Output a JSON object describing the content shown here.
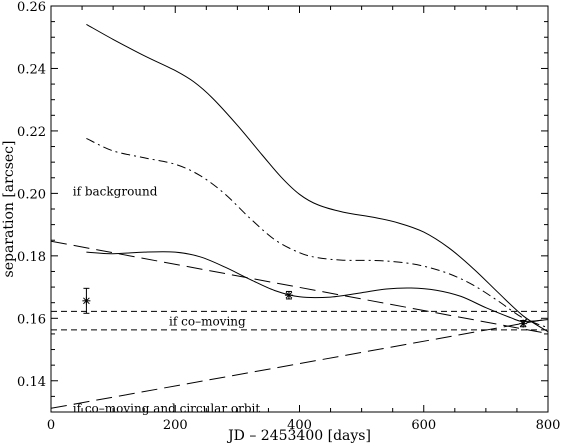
{
  "chart_data": {
    "type": "line",
    "xlabel": "JD – 2453400 [days]",
    "ylabel": "separation [arcsec]",
    "xlim": [
      0,
      800
    ],
    "ylim": [
      0.13,
      0.26
    ],
    "xticks": [
      0,
      200,
      400,
      600,
      800
    ],
    "yticks": [
      0.14,
      0.16,
      0.18,
      0.2,
      0.22,
      0.24,
      0.26
    ],
    "ytick_labels": [
      "0.14",
      "0.16",
      "0.18",
      "0.20",
      "0.22",
      "0.24",
      "0.26"
    ],
    "grid": false,
    "series": [
      {
        "style": "solid",
        "points": [
          [
            57,
            0.2541
          ],
          [
            100,
            0.2493
          ],
          [
            150,
            0.2441
          ],
          [
            200,
            0.2393
          ],
          [
            230,
            0.2357
          ],
          [
            260,
            0.2305
          ],
          [
            300,
            0.2218
          ],
          [
            340,
            0.2123
          ],
          [
            370,
            0.2053
          ],
          [
            400,
            0.1997
          ],
          [
            430,
            0.1963
          ],
          [
            470,
            0.194
          ],
          [
            520,
            0.1923
          ],
          [
            560,
            0.1905
          ],
          [
            600,
            0.1876
          ],
          [
            640,
            0.1826
          ],
          [
            680,
            0.1759
          ],
          [
            720,
            0.1682
          ],
          [
            760,
            0.1608
          ],
          [
            800,
            0.1557
          ]
        ]
      },
      {
        "style": "dash-dot",
        "points": [
          [
            57,
            0.2176
          ],
          [
            100,
            0.2136
          ],
          [
            150,
            0.2114
          ],
          [
            200,
            0.2093
          ],
          [
            240,
            0.2057
          ],
          [
            280,
            0.1998
          ],
          [
            320,
            0.1921
          ],
          [
            360,
            0.1852
          ],
          [
            400,
            0.181
          ],
          [
            430,
            0.1794
          ],
          [
            470,
            0.1786
          ],
          [
            520,
            0.1785
          ],
          [
            560,
            0.178
          ],
          [
            600,
            0.1767
          ],
          [
            640,
            0.1743
          ],
          [
            680,
            0.1706
          ],
          [
            720,
            0.1655
          ],
          [
            760,
            0.1601
          ],
          [
            800,
            0.157
          ]
        ]
      },
      {
        "style": "solid",
        "points": [
          [
            57,
            0.1812
          ],
          [
            100,
            0.1807
          ],
          [
            150,
            0.1812
          ],
          [
            200,
            0.1812
          ],
          [
            240,
            0.1797
          ],
          [
            280,
            0.1764
          ],
          [
            320,
            0.1725
          ],
          [
            360,
            0.1689
          ],
          [
            400,
            0.1669
          ],
          [
            450,
            0.1668
          ],
          [
            500,
            0.1682
          ],
          [
            540,
            0.1694
          ],
          [
            580,
            0.1697
          ],
          [
            620,
            0.169
          ],
          [
            660,
            0.167
          ],
          [
            700,
            0.1634
          ],
          [
            740,
            0.1602
          ],
          [
            760,
            0.159
          ],
          [
            800,
            0.1596
          ]
        ]
      },
      {
        "style": "long-dash",
        "points": [
          [
            0,
            0.1847
          ],
          [
            800,
            0.1551
          ]
        ]
      },
      {
        "style": "dash",
        "points": [
          [
            0,
            0.1622
          ],
          [
            800,
            0.1622
          ]
        ]
      },
      {
        "style": "dash",
        "points": [
          [
            0,
            0.1563
          ],
          [
            800,
            0.1563
          ]
        ]
      },
      {
        "style": "long-dash",
        "points": [
          [
            0,
            0.1312
          ],
          [
            800,
            0.1598
          ]
        ]
      }
    ],
    "measurements": [
      {
        "x": 57,
        "y": 0.1656,
        "yerr": 0.004
      },
      {
        "x": 383,
        "y": 0.1674,
        "yerr": 0.0012
      },
      {
        "x": 760,
        "y": 0.1583,
        "yerr": 0.001
      }
    ],
    "annotations": [
      {
        "text": "if background",
        "x": 35,
        "y": 0.2006
      },
      {
        "text": "if co–moving",
        "x": 190,
        "y": 0.159
      },
      {
        "text": "if co–moving and circular orbit",
        "x": 35,
        "y": 0.1312
      }
    ]
  }
}
